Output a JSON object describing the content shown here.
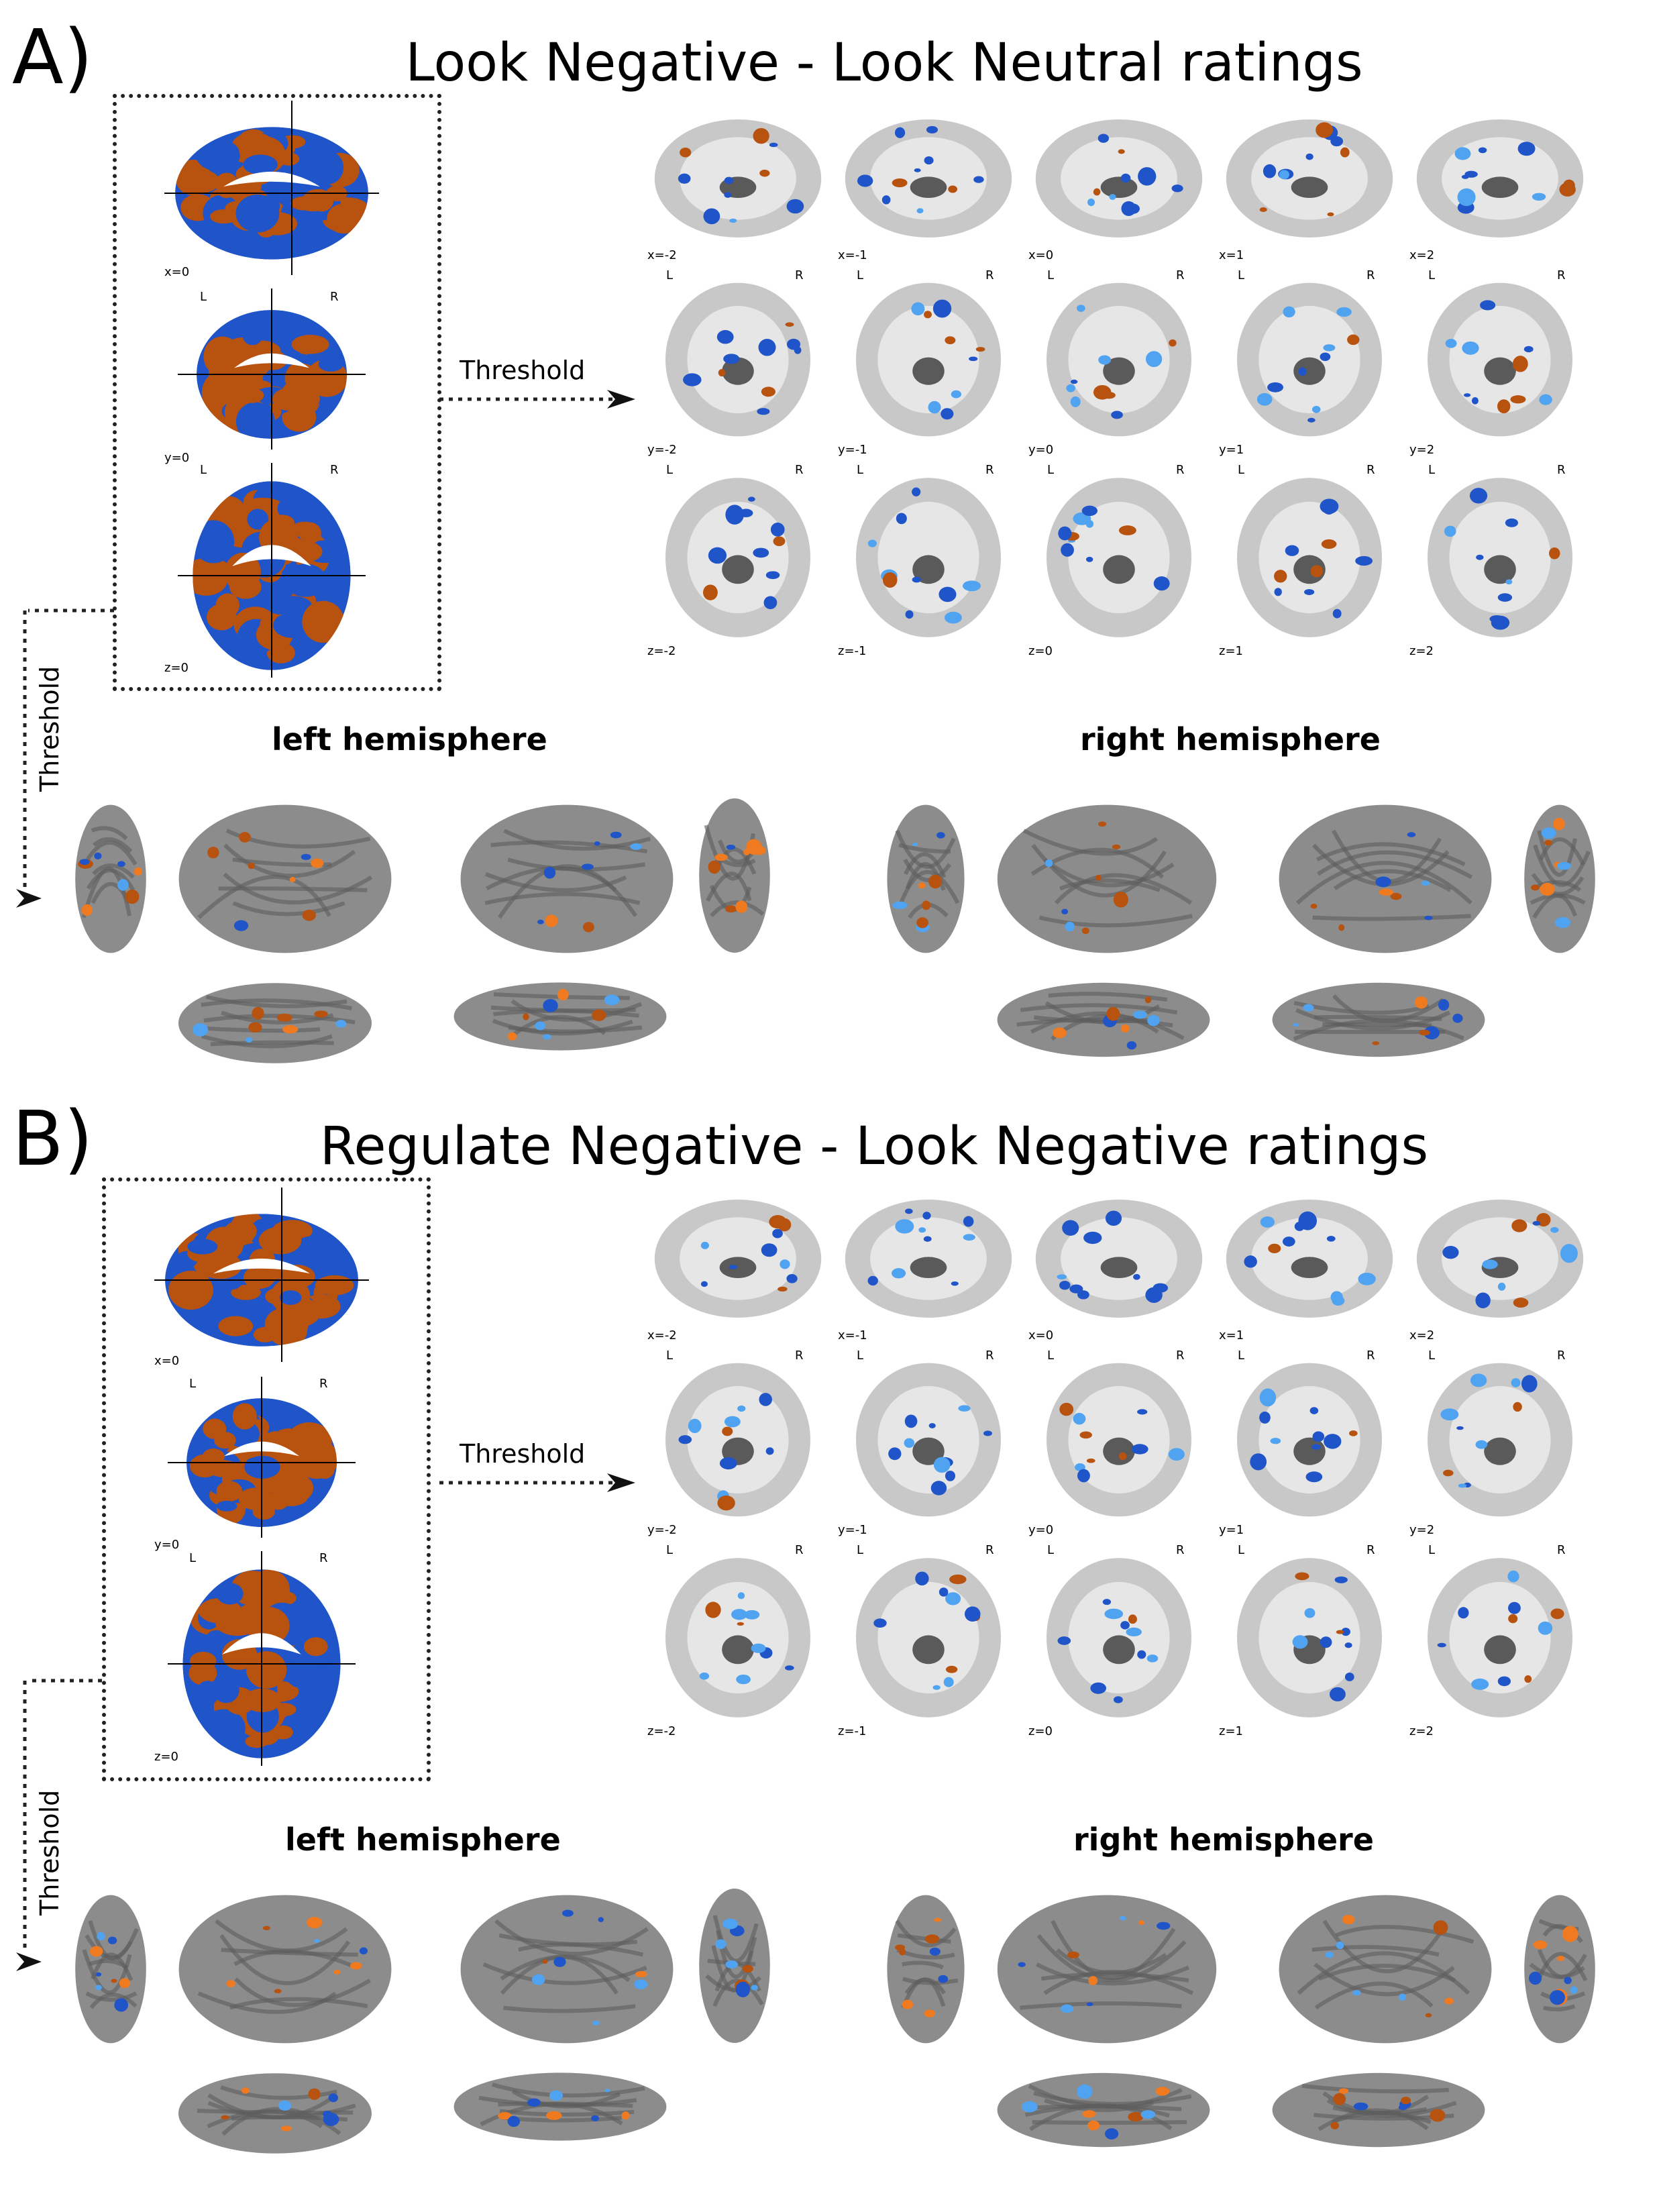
{
  "colors": {
    "positive": "#b8520f",
    "positive_bright": "#f07a20",
    "negative": "#1f55c8",
    "negative_bright": "#4fa3f0",
    "brain_gray": "#a8a8a8",
    "brain_dark": "#5a5a5a",
    "surface_gray": "#8c8c8c",
    "dotted_line": "#222222"
  },
  "icons": [
    "arrowhead-right-icon",
    "arrowhead-down-icon"
  ],
  "panels": [
    {
      "letter": "A)",
      "title": "Look Negative - Look Neutral ratings",
      "glass_labels": {
        "sagittal": "x=0",
        "coronal": "y=0",
        "axial": "z=0"
      },
      "threshold_right": "Threshold",
      "threshold_down": "Threshold",
      "rows": [
        {
          "view": "sagittal",
          "labels": [
            "x=-2",
            "x=-1",
            "x=0",
            "x=1",
            "x=2"
          ]
        },
        {
          "view": "coronal",
          "labels": [
            "y=-2",
            "y=-1",
            "y=0",
            "y=1",
            "y=2"
          ]
        },
        {
          "view": "axial",
          "labels": [
            "z=-2",
            "z=-1",
            "z=0",
            "z=1",
            "z=2"
          ]
        }
      ],
      "orientation": {
        "left": "L",
        "right": "R"
      },
      "left_hemisphere": "left hemisphere",
      "right_hemisphere": "right hemisphere"
    },
    {
      "letter": "B)",
      "title": "Regulate Negative - Look Negative ratings",
      "glass_labels": {
        "sagittal": "x=0",
        "coronal": "y=0",
        "axial": "z=0"
      },
      "threshold_right": "Threshold",
      "threshold_down": "Threshold",
      "rows": [
        {
          "view": "sagittal",
          "labels": [
            "x=-2",
            "x=-1",
            "x=0",
            "x=1",
            "x=2"
          ]
        },
        {
          "view": "coronal",
          "labels": [
            "y=-2",
            "y=-1",
            "y=0",
            "y=1",
            "y=2"
          ]
        },
        {
          "view": "axial",
          "labels": [
            "z=-2",
            "z=-1",
            "z=0",
            "z=1",
            "z=2"
          ]
        }
      ],
      "orientation": {
        "left": "L",
        "right": "R"
      },
      "left_hemisphere": "left hemisphere",
      "right_hemisphere": "right hemisphere"
    }
  ]
}
